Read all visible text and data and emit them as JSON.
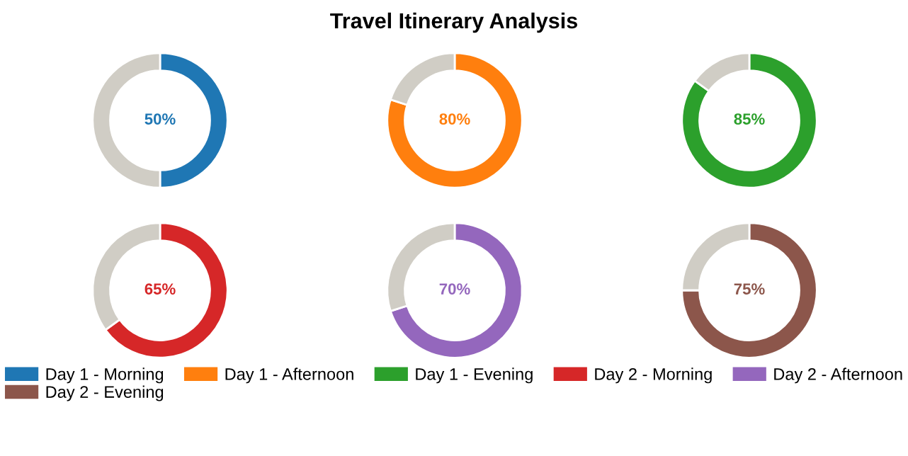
{
  "chart_data": [
    {
      "type": "donut",
      "categories": [
        "Day 1 - Morning",
        null
      ],
      "values": [
        50,
        50
      ],
      "colors": [
        "#1f77b4",
        "#d0cdc5"
      ],
      "value_labels": [
        "50%",
        null
      ],
      "legend": "bottom"
    },
    {
      "type": "donut",
      "title": "Travel Itinerary Analysis",
      "categories": [
        "Day 1 - Afternoon",
        null
      ],
      "values": [
        80,
        20
      ],
      "colors": [
        "#ff7f0e",
        "#d0cdc5"
      ],
      "value_labels": [
        "80%",
        null
      ],
      "legend": "bottom"
    },
    {
      "type": "donut",
      "categories": [
        "Day 1 - Evening",
        null
      ],
      "values": [
        85,
        15
      ],
      "colors": [
        "#2ca02c",
        "#d0cdc5"
      ],
      "value_labels": [
        "85%",
        null
      ],
      "legend": "bottom"
    },
    {
      "type": "donut",
      "categories": [
        "Day 2 - Morning",
        null
      ],
      "values": [
        65,
        35
      ],
      "colors": [
        "#d62728",
        "#d0cdc5"
      ],
      "value_labels": [
        "65%",
        null
      ],
      "legend": "bottom"
    },
    {
      "type": "donut",
      "categories": [
        "Day 2 - Afternoon",
        null
      ],
      "values": [
        70,
        30
      ],
      "colors": [
        "#9467bd",
        "#d0cdc5"
      ],
      "value_labels": [
        "70%",
        null
      ],
      "legend": "bottom"
    },
    {
      "type": "donut",
      "categories": [
        "Day 2 - Evening",
        null
      ],
      "values": [
        75,
        25
      ],
      "colors": [
        "#8c564b",
        "#d0cdc5"
      ],
      "value_labels": [
        "75%",
        null
      ],
      "legend": "bottom"
    }
  ]
}
